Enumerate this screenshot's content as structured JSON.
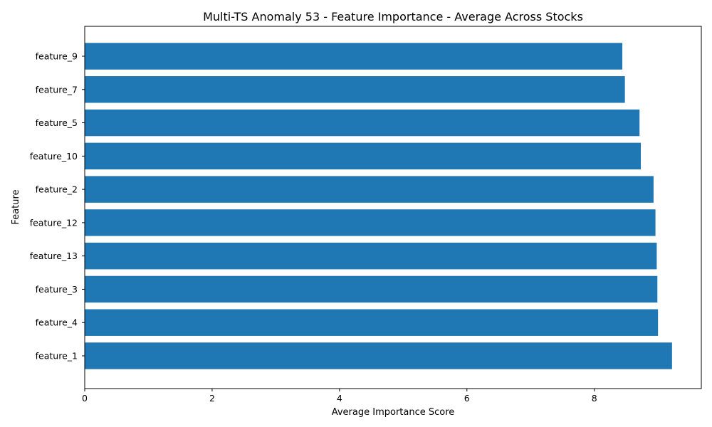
{
  "chart_data": {
    "type": "bar",
    "orientation": "horizontal",
    "title": "Multi-TS Anomaly 53 - Feature Importance - Average Across Stocks",
    "xlabel": "Average Importance Score",
    "ylabel": "Feature",
    "xlim": [
      0,
      9.68
    ],
    "xticks": [
      0,
      2,
      4,
      6,
      8
    ],
    "xtick_labels": [
      "0",
      "2",
      "4",
      "6",
      "8"
    ],
    "grid": false,
    "bar_color": "#1f77b4",
    "categories": [
      "feature_9",
      "feature_7",
      "feature_5",
      "feature_10",
      "feature_2",
      "feature_12",
      "feature_13",
      "feature_3",
      "feature_4",
      "feature_1"
    ],
    "values": [
      8.44,
      8.48,
      8.71,
      8.73,
      8.93,
      8.96,
      8.98,
      8.99,
      9.0,
      9.22
    ]
  }
}
